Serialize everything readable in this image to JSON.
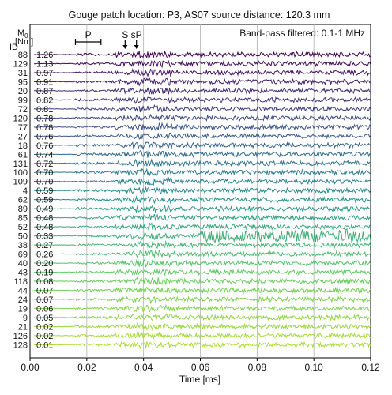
{
  "chart_data": {
    "type": "line",
    "title": "Gouge patch location: P3, AS07 source distance: 120.3 mm",
    "annotation": "Band-pass filtered: 0.1-1 MHz",
    "xlabel": "Time [ms]",
    "xlim": [
      0.0,
      0.12
    ],
    "xticks": [
      "0.00",
      "0.02",
      "0.04",
      "0.06",
      "0.08",
      "0.10",
      "0.12"
    ],
    "grid": "vertical",
    "m0_header": "M",
    "m0_subscript": "0",
    "m0_unit": "[Nm]",
    "id_header": "ID",
    "phase_markers": {
      "p_label": "P",
      "p_window": [
        0.016,
        0.025
      ],
      "s_label": "S",
      "s_time": 0.0335,
      "sp_label": "sP",
      "sp_time": 0.0375
    },
    "colormap": "viridis",
    "traces": [
      {
        "id": "88",
        "m0": "1.26"
      },
      {
        "id": "129",
        "m0": "1.13"
      },
      {
        "id": "31",
        "m0": "0.97"
      },
      {
        "id": "95",
        "m0": "0.91"
      },
      {
        "id": "20",
        "m0": "0.87"
      },
      {
        "id": "99",
        "m0": "0.82"
      },
      {
        "id": "72",
        "m0": "0.81"
      },
      {
        "id": "120",
        "m0": "0.78"
      },
      {
        "id": "77",
        "m0": "0.78"
      },
      {
        "id": "27",
        "m0": "0.76"
      },
      {
        "id": "18",
        "m0": "0.76"
      },
      {
        "id": "61",
        "m0": "0.74"
      },
      {
        "id": "131",
        "m0": "0.72"
      },
      {
        "id": "100",
        "m0": "0.70"
      },
      {
        "id": "109",
        "m0": "0.70"
      },
      {
        "id": "4",
        "m0": "0.59"
      },
      {
        "id": "62",
        "m0": "0.59"
      },
      {
        "id": "89",
        "m0": "0.49"
      },
      {
        "id": "85",
        "m0": "0.48"
      },
      {
        "id": "52",
        "m0": "0.48"
      },
      {
        "id": "50",
        "m0": "0.33"
      },
      {
        "id": "38",
        "m0": "0.27"
      },
      {
        "id": "69",
        "m0": "0.26"
      },
      {
        "id": "40",
        "m0": "0.20"
      },
      {
        "id": "43",
        "m0": "0.19"
      },
      {
        "id": "118",
        "m0": "0.08"
      },
      {
        "id": "44",
        "m0": "0.07"
      },
      {
        "id": "24",
        "m0": "0.07"
      },
      {
        "id": "19",
        "m0": "0.06"
      },
      {
        "id": "9",
        "m0": "0.05"
      },
      {
        "id": "21",
        "m0": "0.02"
      },
      {
        "id": "126",
        "m0": "0.02"
      },
      {
        "id": "128",
        "m0": "0.01"
      }
    ]
  }
}
